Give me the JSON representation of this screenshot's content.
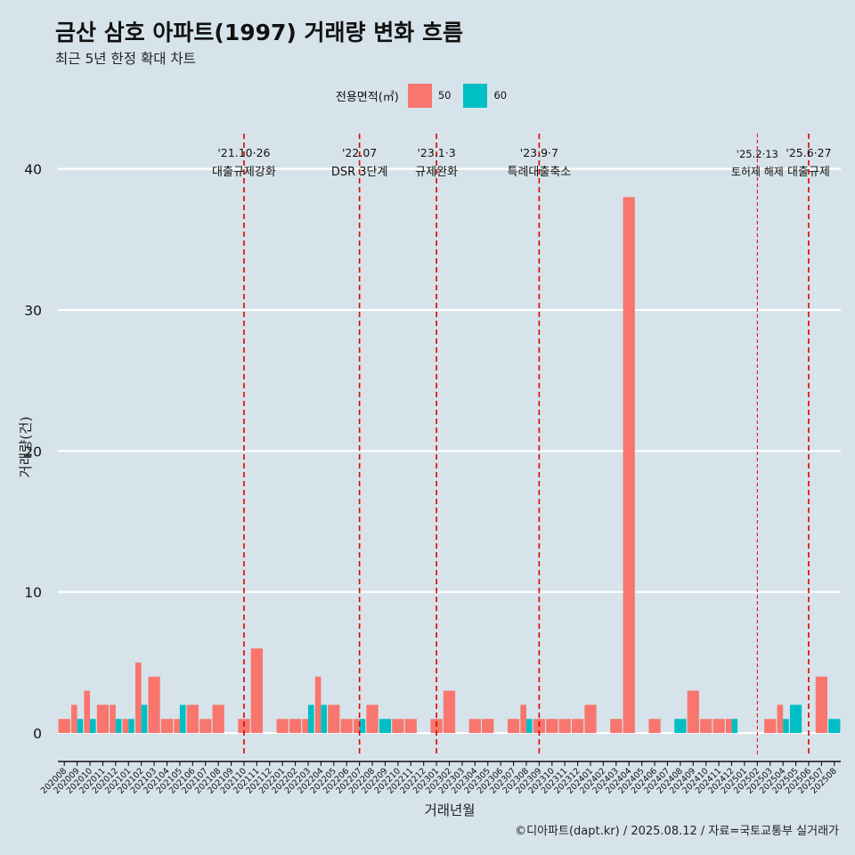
{
  "chart_data": {
    "type": "bar",
    "title": "금산 삼호 아파트(1997) 거래량 변화 흐름",
    "subtitle": "최근 5년 한정 확대 차트",
    "xlabel": "거래년월",
    "ylabel": "거래량(건)",
    "legend": {
      "title": "전용면적(㎡)",
      "placement": "top",
      "entries": [
        {
          "name": "50",
          "color": "#F8766D"
        },
        {
          "name": "60",
          "color": "#00BFC4"
        }
      ]
    },
    "ylim": [
      -1.7,
      42.5
    ],
    "yticks": [
      0,
      10,
      20,
      30,
      40
    ],
    "grid": "horizontal",
    "categories": [
      "202008",
      "202009",
      "202010",
      "202011",
      "202012",
      "202101",
      "202102",
      "202103",
      "202104",
      "202105",
      "202106",
      "202107",
      "202108",
      "202109",
      "202110",
      "202111",
      "202112",
      "202201",
      "202202",
      "202203",
      "202204",
      "202205",
      "202206",
      "202207",
      "202208",
      "202209",
      "202210",
      "202211",
      "202212",
      "202301",
      "202302",
      "202303",
      "202304",
      "202305",
      "202306",
      "202307",
      "202308",
      "202309",
      "202310",
      "202311",
      "202312",
      "202401",
      "202402",
      "202403",
      "202404",
      "202405",
      "202406",
      "202407",
      "202408",
      "202409",
      "202410",
      "202411",
      "202412",
      "202501",
      "202502",
      "202503",
      "202504",
      "202505",
      "202506",
      "202507",
      "202508"
    ],
    "series": [
      {
        "name": "50",
        "color": "#F8766D",
        "values": [
          1,
          2,
          3,
          2,
          2,
          1,
          5,
          4,
          1,
          1,
          2,
          1,
          2,
          0,
          1,
          6,
          0,
          1,
          1,
          1,
          4,
          2,
          1,
          1,
          2,
          0,
          1,
          1,
          0,
          1,
          3,
          0,
          1,
          1,
          0,
          1,
          2,
          1,
          1,
          1,
          1,
          2,
          0,
          1,
          38,
          0,
          1,
          0,
          0,
          3,
          1,
          1,
          1,
          0,
          0,
          1,
          2,
          0,
          0,
          4,
          0
        ]
      },
      {
        "name": "60",
        "color": "#00BFC4",
        "values": [
          0,
          1,
          1,
          0,
          1,
          1,
          2,
          0,
          0,
          2,
          0,
          0,
          0,
          0,
          0,
          0,
          0,
          0,
          0,
          2,
          2,
          0,
          0,
          1,
          0,
          1,
          0,
          0,
          0,
          0,
          0,
          0,
          0,
          0,
          0,
          0,
          1,
          0,
          0,
          0,
          0,
          0,
          0,
          0,
          0,
          0,
          0,
          0,
          1,
          0,
          0,
          0,
          1,
          0,
          0,
          0,
          1,
          2,
          0,
          0,
          1
        ]
      }
    ],
    "annotations": [
      {
        "x": "202110",
        "date": "'21.10·26",
        "label": "대출규제강화",
        "line_style": "dashed",
        "color": "#e00000"
      },
      {
        "x": "202207",
        "date": "'22.07",
        "label": "DSR 3단계",
        "line_style": "dashed",
        "color": "#e00000"
      },
      {
        "x": "202301",
        "date": "'23.1·3",
        "label": "규제완화",
        "line_style": "dashed",
        "color": "#e00000"
      },
      {
        "x": "202309",
        "date": "'23.9·7",
        "label": "특례대출축소",
        "line_style": "dashed",
        "color": "#e00000"
      },
      {
        "x": "202502",
        "date": "'25.2·13",
        "label": "토허제 해제",
        "line_style": "dashed-thin",
        "color": "#e00000"
      },
      {
        "x": "202506",
        "date": "'25.6·27",
        "label": "대출규제",
        "line_style": "dashed",
        "color": "#e00000"
      }
    ]
  },
  "caption": "©디아파트(dapt.kr) / 2025.08.12 / 자료=국토교통부 실거래가",
  "colors": {
    "background": "#d6e3ea",
    "gridline": "#ffffff",
    "annotation": "#e00000"
  }
}
